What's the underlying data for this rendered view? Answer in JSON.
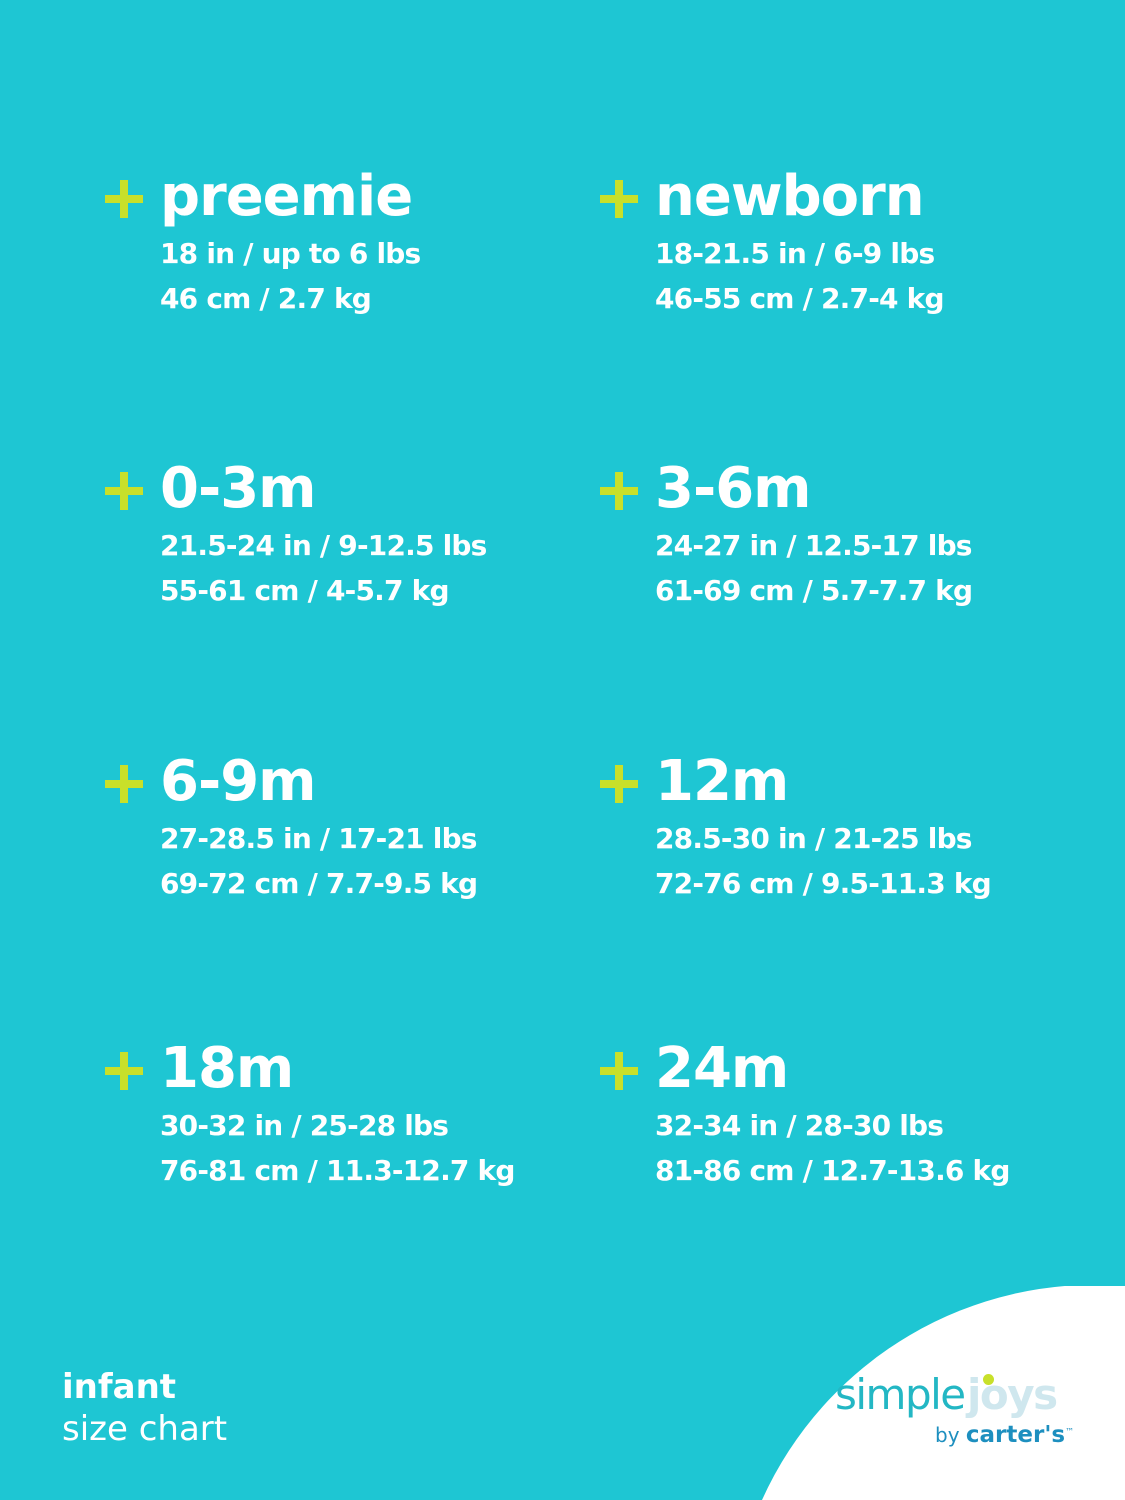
{
  "sizes": [
    {
      "name": "preemie",
      "length": "18 in / up to 6 lbs",
      "metric": "46 cm / 2.7 kg"
    },
    {
      "name": "newborn",
      "length": "18-21.5 in / 6-9 lbs",
      "metric": "46-55 cm / 2.7-4 kg"
    },
    {
      "name": "0-3m",
      "length": "21.5-24 in / 9-12.5 lbs",
      "metric": "55-61 cm / 4-5.7 kg"
    },
    {
      "name": "3-6m",
      "length": "24-27 in / 12.5-17 lbs",
      "metric": "61-69 cm / 5.7-7.7 kg"
    },
    {
      "name": "6-9m",
      "length": "27-28.5 in / 17-21 lbs",
      "metric": "69-72 cm / 7.7-9.5 kg"
    },
    {
      "name": "12m",
      "length": "28.5-30 in / 21-25 lbs",
      "metric": "72-76 cm / 9.5-11.3 kg"
    },
    {
      "name": "18m",
      "length": "30-32 in / 25-28 lbs",
      "metric": "76-81 cm / 11.3-12.7 kg"
    },
    {
      "name": "24m",
      "length": "32-34 in / 28-30 lbs",
      "metric": "81-86 cm / 12.7-13.6 kg"
    }
  ],
  "footer": {
    "line1": "infant",
    "line2": "size chart"
  },
  "logo": {
    "simple": "simple",
    "joys": "joys",
    "by": "by",
    "brand": "carter's",
    "tm": "™"
  },
  "colors": {
    "background": "#1ec6d3",
    "plus": "#c8e02a",
    "text": "#ffffff",
    "logo_teal": "#23b7c4",
    "logo_blue": "#1d8fbf"
  },
  "icons": {
    "bullet": "plus-icon"
  }
}
